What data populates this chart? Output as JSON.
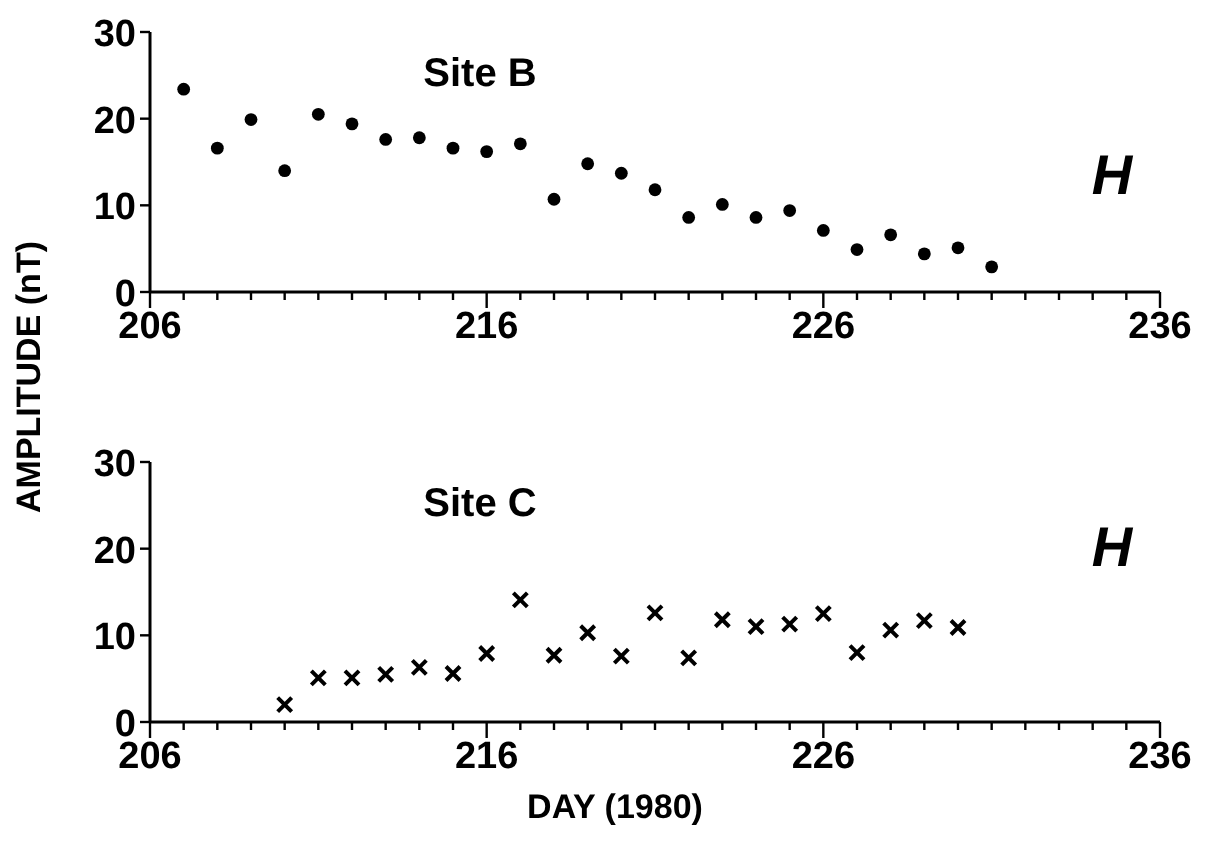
{
  "chart_data": [
    {
      "type": "scatter",
      "title": "Site B",
      "ylabel": "AMPLITUDE (nT)",
      "annotations": [
        "H"
      ],
      "marker": "circle",
      "xlim": [
        206,
        236
      ],
      "ylim": [
        0,
        30
      ],
      "xticks": [
        206,
        {
          "value": 207,
          "label": null
        },
        {
          "value": 208,
          "label": null
        },
        {
          "value": 209,
          "label": null
        },
        {
          "value": 210,
          "label": null
        },
        {
          "value": 211,
          "label": null
        },
        {
          "value": 212,
          "label": null
        },
        {
          "value": 213,
          "label": null
        },
        {
          "value": 214,
          "label": null
        },
        {
          "value": 215,
          "label": null
        },
        216,
        {
          "value": 217,
          "label": null
        },
        {
          "value": 218,
          "label": null
        },
        {
          "value": 219,
          "label": null
        },
        {
          "value": 220,
          "label": null
        },
        {
          "value": 221,
          "label": null
        },
        {
          "value": 222,
          "label": null
        },
        {
          "value": 223,
          "label": null
        },
        {
          "value": 224,
          "label": null
        },
        {
          "value": 225,
          "label": null
        },
        226,
        {
          "value": 227,
          "label": null
        },
        {
          "value": 228,
          "label": null
        },
        {
          "value": 229,
          "label": null
        },
        {
          "value": 230,
          "label": null
        },
        {
          "value": 231,
          "label": null
        },
        {
          "value": 232,
          "label": null
        },
        {
          "value": 233,
          "label": null
        },
        {
          "value": 234,
          "label": null
        },
        {
          "value": 235,
          "label": null
        },
        236
      ],
      "yticks": [
        0,
        10,
        20,
        30
      ],
      "series": [
        {
          "color": "#000000",
          "x": [
            207,
            208,
            209,
            210,
            211,
            212,
            213,
            214,
            215,
            216,
            217,
            218,
            219,
            220,
            221,
            222,
            223,
            224,
            225,
            226,
            227,
            228,
            229,
            230,
            231
          ],
          "values": [
            23.4,
            16.6,
            19.9,
            14.0,
            20.5,
            19.4,
            17.6,
            17.8,
            16.6,
            16.2,
            17.1,
            10.7,
            14.8,
            13.7,
            11.8,
            8.6,
            10.1,
            8.6,
            9.4,
            7.1,
            4.9,
            6.6,
            4.4,
            5.1,
            2.9
          ]
        }
      ]
    },
    {
      "type": "scatter",
      "title": "Site C",
      "xlabel": "DAY (1980)",
      "annotations": [
        "H"
      ],
      "marker": "cross",
      "xlim": [
        206,
        236
      ],
      "ylim": [
        0,
        30
      ],
      "xticks": [
        206,
        {
          "value": 207,
          "label": null
        },
        {
          "value": 208,
          "label": null
        },
        {
          "value": 209,
          "label": null
        },
        {
          "value": 210,
          "label": null
        },
        {
          "value": 211,
          "label": null
        },
        {
          "value": 212,
          "label": null
        },
        {
          "value": 213,
          "label": null
        },
        {
          "value": 214,
          "label": null
        },
        {
          "value": 215,
          "label": null
        },
        216,
        {
          "value": 217,
          "label": null
        },
        {
          "value": 218,
          "label": null
        },
        {
          "value": 219,
          "label": null
        },
        {
          "value": 220,
          "label": null
        },
        {
          "value": 221,
          "label": null
        },
        {
          "value": 222,
          "label": null
        },
        {
          "value": 223,
          "label": null
        },
        {
          "value": 224,
          "label": null
        },
        {
          "value": 225,
          "label": null
        },
        226,
        {
          "value": 227,
          "label": null
        },
        {
          "value": 228,
          "label": null
        },
        {
          "value": 229,
          "label": null
        },
        {
          "value": 230,
          "label": null
        },
        {
          "value": 231,
          "label": null
        },
        {
          "value": 232,
          "label": null
        },
        {
          "value": 233,
          "label": null
        },
        {
          "value": 234,
          "label": null
        },
        {
          "value": 235,
          "label": null
        },
        236
      ],
      "yticks": [
        0,
        10,
        20,
        30
      ],
      "series": [
        {
          "color": "#000000",
          "x": [
            210,
            211,
            212,
            213,
            214,
            215,
            216,
            217,
            218,
            219,
            220,
            221,
            222,
            223,
            224,
            225,
            226,
            227,
            228,
            229,
            230
          ],
          "values": [
            2.0,
            5.1,
            5.1,
            5.5,
            6.3,
            5.6,
            7.9,
            14.1,
            7.7,
            10.3,
            7.6,
            12.6,
            7.4,
            11.8,
            11.0,
            11.3,
            12.5,
            8.0,
            10.6,
            11.7,
            10.9
          ]
        }
      ]
    }
  ]
}
